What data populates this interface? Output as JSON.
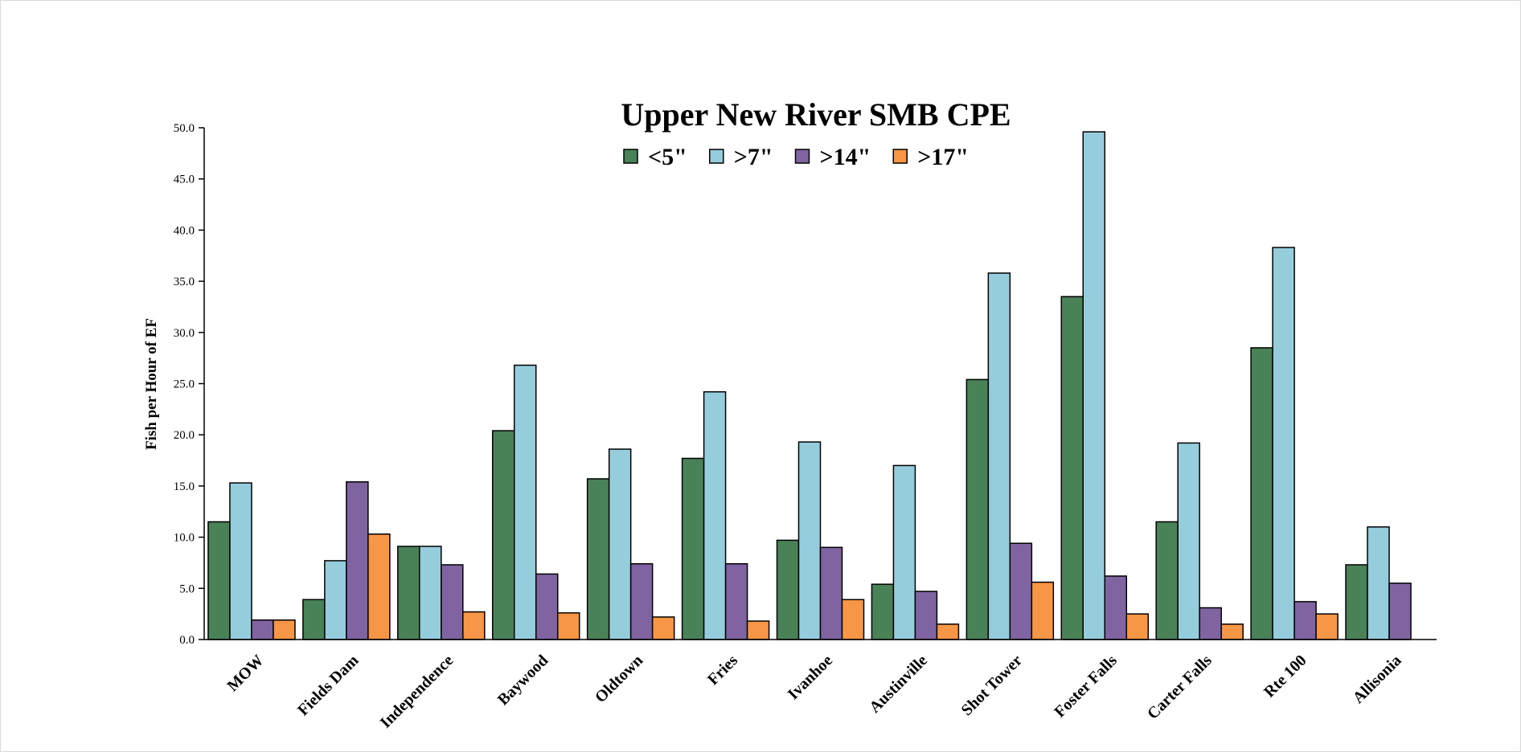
{
  "chart_data": {
    "type": "bar",
    "title": "Upper New River SMB CPE",
    "xlabel": "",
    "ylabel": "Fish per Hour of EF",
    "ylim": [
      0,
      50
    ],
    "ytick_step": 5,
    "ytick_labels": [
      "0.0",
      "5.0",
      "10.0",
      "15.0",
      "20.0",
      "25.0",
      "30.0",
      "35.0",
      "40.0",
      "45.0",
      "50.0"
    ],
    "legend_position": "top-center",
    "grid": false,
    "categories": [
      "MOW",
      "Fields Dam",
      "Independence",
      "Baywood",
      "Oldtown",
      "Fries",
      "Ivanhoe",
      "Austinville",
      "Shot Tower",
      "Foster Falls",
      "Carter Falls",
      "Rte 100",
      "Allisonia"
    ],
    "series": [
      {
        "name": "<5\"",
        "color": "#4a8258",
        "values": [
          11.5,
          3.9,
          9.1,
          20.4,
          15.7,
          17.7,
          9.7,
          5.4,
          25.4,
          33.5,
          11.5,
          28.5,
          7.3
        ]
      },
      {
        "name": ">7\"",
        "color": "#96cddd",
        "values": [
          15.3,
          7.7,
          9.1,
          26.8,
          18.6,
          24.2,
          19.3,
          17.0,
          35.8,
          49.6,
          19.2,
          38.3,
          11.0
        ]
      },
      {
        "name": ">14\"",
        "color": "#8064a2",
        "values": [
          1.9,
          15.4,
          7.3,
          6.4,
          7.4,
          7.4,
          9.0,
          4.7,
          9.4,
          6.2,
          3.1,
          3.7,
          5.5
        ]
      },
      {
        "name": ">17\"",
        "color": "#f79646",
        "values": [
          1.9,
          10.3,
          2.7,
          2.6,
          2.2,
          1.8,
          3.9,
          1.5,
          5.6,
          2.5,
          1.5,
          2.5,
          null
        ]
      }
    ]
  }
}
